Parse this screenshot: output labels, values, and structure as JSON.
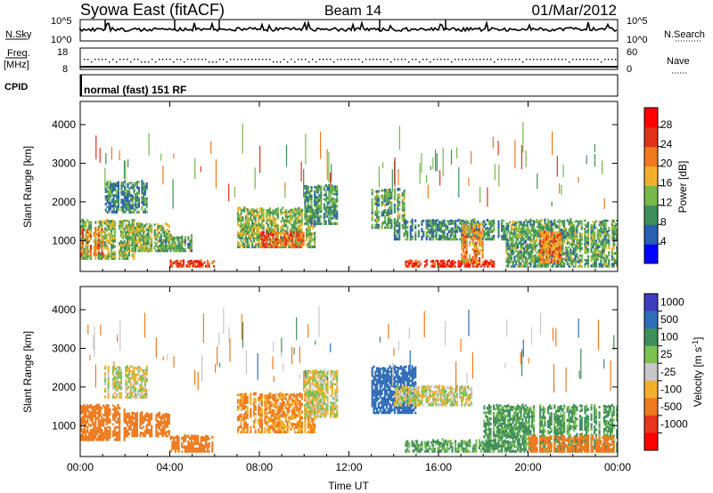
{
  "header": {
    "radar": "Syowa East (fitACF)",
    "beam": "Beam 14",
    "date": "01/Mar/2012"
  },
  "nsky_panel": {
    "left_label": "N.Sky",
    "right_label": "N.Search",
    "ticks_left": [
      "10^5",
      "10^0"
    ],
    "ticks_right": [
      "10^5",
      "10^0"
    ]
  },
  "freq_panel": {
    "left_label_1": "Freq.",
    "left_label_2": "[MHz]",
    "right_label": "Nave",
    "ticks_left": [
      "18",
      "8"
    ],
    "ticks_right": [
      "60",
      "0"
    ]
  },
  "cpid_panel": {
    "label": "CPID",
    "text": "normal (fast) 151 RF"
  },
  "range_axis": {
    "label": "Slant Range [km]",
    "ticks": [
      "4000",
      "3000",
      "2000",
      "1000"
    ],
    "tick_values": [
      4000,
      3000,
      2000,
      1000
    ],
    "ylim": [
      200,
      4600
    ]
  },
  "time_axis": {
    "label": "Time UT",
    "ticks": [
      "00:00",
      "04:00",
      "08:00",
      "12:00",
      "16:00",
      "20:00",
      "00:00"
    ],
    "tick_hours": [
      0,
      4,
      8,
      12,
      16,
      20,
      24
    ],
    "xlim": [
      0,
      24
    ]
  },
  "power_scale": {
    "label": "Power [dB]",
    "ticks": [
      "28",
      "24",
      "20",
      "16",
      "12",
      "8",
      "4"
    ],
    "colors": [
      "#0000ff",
      "#2a5fb0",
      "#3f8f5a",
      "#78b84a",
      "#f2b02a",
      "#f07a1f",
      "#e0311d",
      "#ff0000"
    ]
  },
  "velocity_scale": {
    "label": "Velocity [m s",
    "label_sup": "-1",
    "label_end": "]",
    "ticks": [
      "1000",
      "500",
      "100",
      "25",
      "-25",
      "-100",
      "-500",
      "-1000"
    ],
    "colors": [
      "#3d3dbf",
      "#2f6db8",
      "#3f8f5a",
      "#7cc152",
      "#c8c8c8",
      "#f2b02a",
      "#ef7a1e",
      "#e8351e",
      "#ff0000"
    ]
  },
  "chart_data": {
    "type": "heatmap",
    "title": "Syowa East (fitACF) Beam 14 01/Mar/2012",
    "xlabel": "Time UT",
    "ylabel": "Slant Range [km]",
    "xlim": [
      0,
      24
    ],
    "ylim": [
      200,
      4600
    ],
    "power_blobs": [
      {
        "t0": 0.0,
        "t1": 2.5,
        "r0": 500,
        "r1": 1500,
        "v": 14
      },
      {
        "t0": 0.0,
        "t1": 1.0,
        "r0": 600,
        "r1": 1300,
        "v": 22
      },
      {
        "t0": 1.1,
        "t1": 3.0,
        "r0": 1700,
        "r1": 2500,
        "v": 9
      },
      {
        "t0": 2.0,
        "t1": 4.0,
        "r0": 700,
        "r1": 1400,
        "v": 13
      },
      {
        "t0": 4.0,
        "t1": 6.0,
        "r0": 300,
        "r1": 450,
        "v": 25
      },
      {
        "t0": 3.5,
        "t1": 5.0,
        "r0": 700,
        "r1": 1100,
        "v": 12
      },
      {
        "t0": 7.0,
        "t1": 10.5,
        "r0": 800,
        "r1": 1800,
        "v": 14
      },
      {
        "t0": 8.0,
        "t1": 10.0,
        "r0": 800,
        "r1": 1200,
        "v": 24
      },
      {
        "t0": 10.0,
        "t1": 11.5,
        "r0": 1400,
        "r1": 2400,
        "v": 11
      },
      {
        "t0": 13.0,
        "t1": 14.5,
        "r0": 1300,
        "r1": 2300,
        "v": 12
      },
      {
        "t0": 14.0,
        "t1": 19.0,
        "r0": 1000,
        "r1": 1500,
        "v": 10
      },
      {
        "t0": 14.5,
        "t1": 18.5,
        "r0": 300,
        "r1": 450,
        "v": 26
      },
      {
        "t0": 17.0,
        "t1": 18.0,
        "r0": 400,
        "r1": 1400,
        "v": 20
      },
      {
        "t0": 19.0,
        "t1": 24.0,
        "r0": 300,
        "r1": 1500,
        "v": 12
      },
      {
        "t0": 20.5,
        "t1": 21.5,
        "r0": 400,
        "r1": 1200,
        "v": 22
      }
    ],
    "velocity_blobs": [
      {
        "t0": 0.0,
        "t1": 2.0,
        "r0": 600,
        "r1": 1500,
        "v": -300
      },
      {
        "t0": 1.0,
        "t1": 3.0,
        "r0": 1700,
        "r1": 2500,
        "v": 0
      },
      {
        "t0": 2.0,
        "t1": 4.0,
        "r0": 700,
        "r1": 1300,
        "v": -200
      },
      {
        "t0": 4.0,
        "t1": 6.0,
        "r0": 300,
        "r1": 700,
        "v": -400
      },
      {
        "t0": 7.0,
        "t1": 10.5,
        "r0": 800,
        "r1": 1800,
        "v": -120
      },
      {
        "t0": 10.0,
        "t1": 11.5,
        "r0": 1200,
        "r1": 2400,
        "v": 0
      },
      {
        "t0": 13.0,
        "t1": 15.0,
        "r0": 1300,
        "r1": 2500,
        "v": 600
      },
      {
        "t0": 14.0,
        "t1": 17.5,
        "r0": 1500,
        "r1": 2000,
        "v": 0
      },
      {
        "t0": 14.5,
        "t1": 18.5,
        "r0": 300,
        "r1": 600,
        "v": 120
      },
      {
        "t0": 18.0,
        "t1": 24.0,
        "r0": 300,
        "r1": 1500,
        "v": 150
      },
      {
        "t0": 20.0,
        "t1": 24.0,
        "r0": 300,
        "r1": 700,
        "v": -300
      }
    ]
  }
}
